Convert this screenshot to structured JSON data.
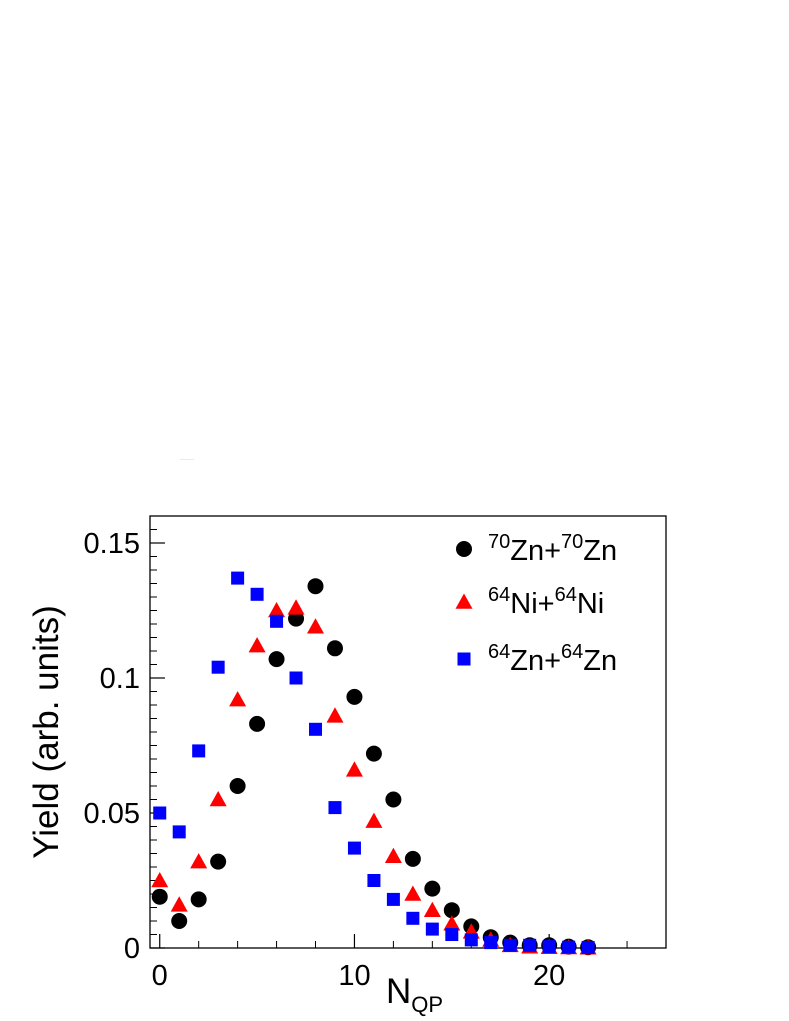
{
  "chart_data": {
    "type": "scatter",
    "title": "",
    "xlabel": "N",
    "xlabel_sub": "QP",
    "ylabel": "Yield (arb. units)",
    "xlim": [
      -0.5,
      26
    ],
    "ylim": [
      0,
      0.16
    ],
    "x_ticks": [
      0,
      10,
      20
    ],
    "x_tick_labels": [
      "0",
      "10",
      "20"
    ],
    "y_ticks": [
      0,
      0.05,
      0.1,
      0.15
    ],
    "y_tick_labels": [
      "0",
      "0.05",
      "0.1",
      "0.15"
    ],
    "legend_position": "top-right",
    "grid": false,
    "series": [
      {
        "name": "70Zn+70Zn",
        "label_parts": [
          [
            "70",
            "Zn+"
          ],
          [
            "70",
            "Zn"
          ]
        ],
        "marker": "circle",
        "color": "#000000",
        "x": [
          0,
          1,
          2,
          3,
          4,
          5,
          6,
          7,
          8,
          9,
          10,
          11,
          12,
          13,
          14,
          15,
          16,
          17,
          18,
          19,
          20,
          21,
          22
        ],
        "y": [
          0.019,
          0.01,
          0.018,
          0.032,
          0.06,
          0.083,
          0.107,
          0.122,
          0.134,
          0.111,
          0.093,
          0.072,
          0.055,
          0.033,
          0.022,
          0.014,
          0.008,
          0.004,
          0.002,
          0.001,
          0.001,
          0.0005,
          0.0003
        ]
      },
      {
        "name": "64Ni+64Ni",
        "label_parts": [
          [
            "64",
            "Ni+"
          ],
          [
            "64",
            "Ni"
          ]
        ],
        "marker": "triangle",
        "color": "#ff0000",
        "x": [
          0,
          1,
          2,
          3,
          4,
          5,
          6,
          7,
          8,
          9,
          10,
          11,
          12,
          13,
          14,
          15,
          16,
          17,
          18,
          19,
          20,
          21,
          22
        ],
        "y": [
          0.025,
          0.016,
          0.032,
          0.055,
          0.092,
          0.112,
          0.125,
          0.126,
          0.119,
          0.086,
          0.066,
          0.047,
          0.034,
          0.02,
          0.014,
          0.009,
          0.006,
          0.003,
          0.001,
          0.0005,
          0.0003,
          0.0002,
          0.0001
        ]
      },
      {
        "name": "64Zn+64Zn",
        "label_parts": [
          [
            "64",
            "Zn+"
          ],
          [
            "64",
            "Zn"
          ]
        ],
        "marker": "square",
        "color": "#0000ff",
        "x": [
          0,
          1,
          2,
          3,
          4,
          5,
          6,
          7,
          8,
          9,
          10,
          11,
          12,
          13,
          14,
          15,
          16,
          17,
          18,
          19,
          20,
          21,
          22
        ],
        "y": [
          0.05,
          0.043,
          0.073,
          0.104,
          0.137,
          0.131,
          0.121,
          0.1,
          0.081,
          0.052,
          0.037,
          0.025,
          0.018,
          0.011,
          0.007,
          0.005,
          0.003,
          0.002,
          0.001,
          0.001,
          0.0005,
          0.0003,
          0.0002
        ]
      }
    ]
  }
}
